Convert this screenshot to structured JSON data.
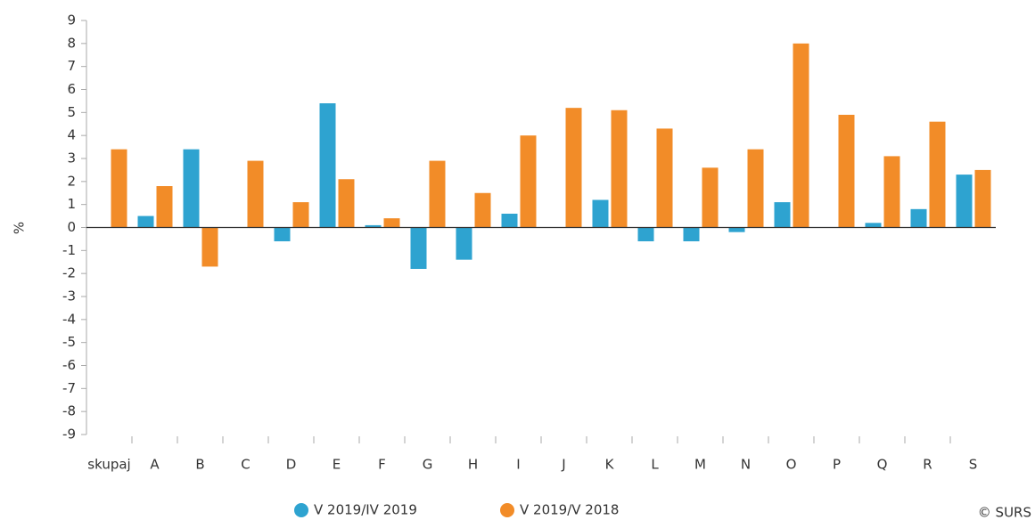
{
  "chart_data": {
    "type": "bar",
    "y_label": "%",
    "credit": "© SURS",
    "categories": [
      "skupaj",
      "A",
      "B",
      "C",
      "D",
      "E",
      "F",
      "G",
      "H",
      "I",
      "J",
      "K",
      "L",
      "M",
      "N",
      "O",
      "P",
      "Q",
      "R",
      "S"
    ],
    "series": [
      {
        "name": "V 2019/IV 2019",
        "color": "#2ea3d0",
        "values": [
          0,
          0.5,
          3.4,
          0,
          -0.6,
          5.4,
          0.1,
          -1.8,
          -1.4,
          0.6,
          0,
          1.2,
          -0.6,
          -0.6,
          -0.2,
          1.1,
          0,
          0.2,
          0.8,
          2.3
        ]
      },
      {
        "name": "V 2019/V 2018",
        "color": "#f28c28",
        "values": [
          3.4,
          1.8,
          -1.7,
          2.9,
          1.1,
          2.1,
          0.4,
          2.9,
          1.5,
          4.0,
          5.2,
          5.1,
          4.3,
          2.6,
          3.4,
          8.0,
          4.9,
          3.1,
          4.6,
          2.5
        ]
      }
    ],
    "ylim": [
      -9,
      9
    ],
    "yticks": [
      -9,
      -8,
      -7,
      -6,
      -5,
      -4,
      -3,
      -2,
      -1,
      0,
      1,
      2,
      3,
      4,
      5,
      6,
      7,
      8,
      9
    ],
    "grid": false
  }
}
